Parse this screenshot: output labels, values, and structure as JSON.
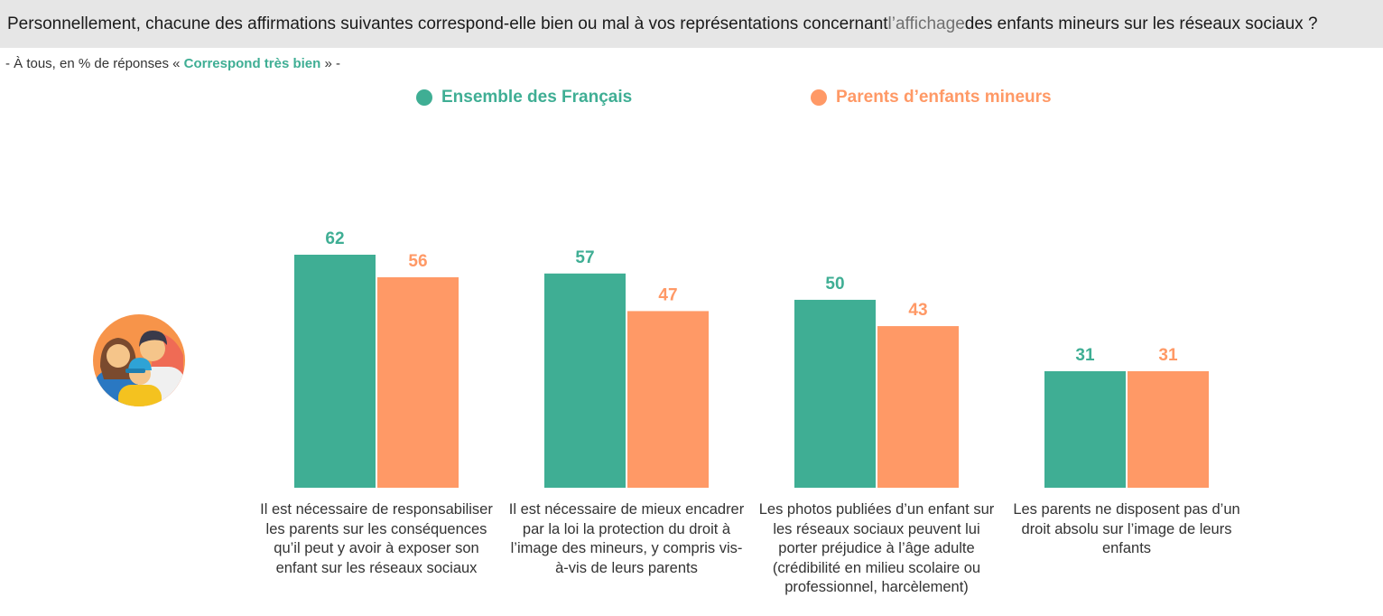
{
  "header": {
    "question_part1": "Personnellement, chacune des affirmations suivantes correspond-elle bien ou mal à vos représentations concernant ",
    "question_soft": "l’affichage",
    "question_part2": " des enfants mineurs sur les réseaux sociaux ?"
  },
  "subtitle": {
    "prefix": "- À tous, en % de réponses « ",
    "emphasis": "Correspond très bien",
    "suffix": " » -"
  },
  "colors": {
    "series1": "#3fae94",
    "series2": "#ff9966",
    "header_bg": "#e6e6e6"
  },
  "icons": {
    "avatar": "family-icon"
  },
  "chart_data": {
    "type": "bar",
    "categories": [
      "Il est nécessaire de responsabiliser les parents sur les conséquences qu’il peut y avoir à exposer son enfant sur les réseaux sociaux",
      "Il est nécessaire de mieux encadrer par la loi la protection du droit à l’image des mineurs, y compris vis-à-vis de leurs parents",
      "Les photos publiées d’un enfant sur les réseaux sociaux peuvent lui porter préjudice à l’âge adulte (crédibilité en milieu scolaire ou professionnel, harcèlement)",
      "Les parents ne disposent pas d’un droit absolu sur l’image de leurs enfants"
    ],
    "series": [
      {
        "name": "Ensemble des Français",
        "values": [
          62,
          57,
          50,
          31
        ],
        "color": "#3fae94"
      },
      {
        "name": "Parents d’enfants mineurs",
        "values": [
          56,
          47,
          43,
          31
        ],
        "color": "#ff9966"
      }
    ],
    "ylim": [
      0,
      62
    ],
    "data_labels": true,
    "grid": false,
    "legend_position": "top-center"
  }
}
